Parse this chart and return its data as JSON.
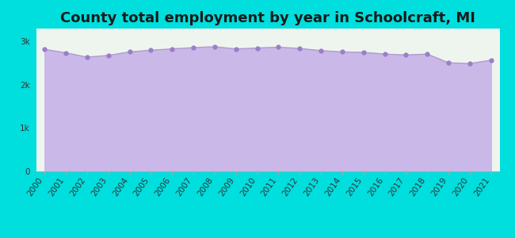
{
  "title": "County total employment by year in Schoolcraft, MI",
  "years": [
    2000,
    2001,
    2002,
    2003,
    2004,
    2005,
    2006,
    2007,
    2008,
    2009,
    2010,
    2011,
    2012,
    2013,
    2014,
    2015,
    2016,
    2017,
    2018,
    2019,
    2020,
    2021
  ],
  "values": [
    2820,
    2740,
    2640,
    2680,
    2760,
    2800,
    2830,
    2860,
    2880,
    2830,
    2850,
    2870,
    2840,
    2790,
    2760,
    2750,
    2710,
    2690,
    2710,
    2510,
    2490,
    2570
  ],
  "line_color": "#b09ccc",
  "fill_color": "#c9b8e8",
  "marker_color": "#9b7ec8",
  "background_color": "#00dede",
  "plot_bg_color": "#eef5ee",
  "title_color": "#1a1a1a",
  "ytick_labels": [
    "0",
    "1k",
    "2k",
    "3k"
  ],
  "ytick_values": [
    0,
    1000,
    2000,
    3000
  ],
  "ylim": [
    0,
    3300
  ],
  "title_fontsize": 13,
  "tick_fontsize": 7.5,
  "marker_size": 3.5
}
